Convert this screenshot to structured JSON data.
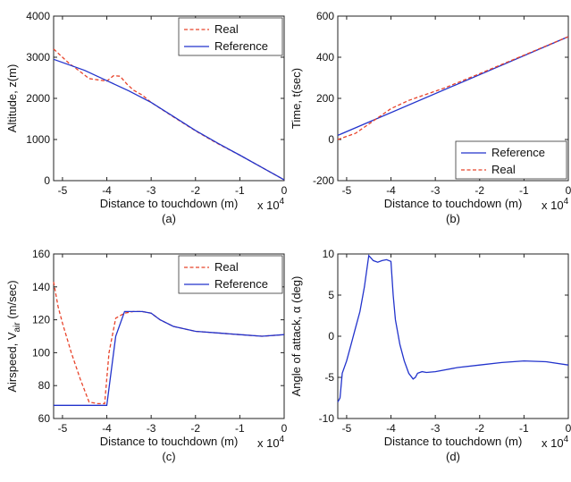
{
  "chart_data": [
    {
      "id": "a",
      "type": "line",
      "caption": "(a)",
      "xlabel": "Distance to touchdown (m)",
      "xexponent": "x 10",
      "xexponent_power": "4",
      "ylabel": "Altitude, z(m)",
      "xlim": [
        -5.2,
        0
      ],
      "ylim": [
        0,
        4000
      ],
      "xticks": [
        -5,
        -4,
        -3,
        -2,
        -1,
        0
      ],
      "xtick_labels": [
        "-5",
        "-4",
        "-3",
        "-2",
        "-1",
        "0"
      ],
      "yticks": [
        0,
        1000,
        2000,
        3000,
        4000
      ],
      "ytick_labels": [
        "0",
        "1000",
        "2000",
        "3000",
        "4000"
      ],
      "legend_position": "top-right",
      "series": [
        {
          "name": "Real",
          "color": "#e8432a",
          "dash": "dashed",
          "x": [
            -5.2,
            -5.05,
            -4.85,
            -4.6,
            -4.4,
            -4.2,
            -4.0,
            -3.85,
            -3.7,
            -3.55,
            -3.4,
            -3.2,
            -3.0,
            -2.5,
            -2.0,
            -1.5,
            -1.0,
            -0.5,
            0
          ],
          "y": [
            3200,
            3050,
            2850,
            2650,
            2480,
            2450,
            2420,
            2550,
            2540,
            2350,
            2200,
            2080,
            1900,
            1550,
            1210,
            900,
            620,
            320,
            20
          ]
        },
        {
          "name": "Reference",
          "color": "#2233cc",
          "dash": "solid",
          "x": [
            -5.2,
            -4.5,
            -4.0,
            -3.5,
            -3.0,
            -2.5,
            -2.0,
            -1.5,
            -1.0,
            -0.5,
            0
          ],
          "y": [
            2950,
            2680,
            2430,
            2180,
            1900,
            1560,
            1220,
            910,
            620,
            320,
            20
          ]
        }
      ]
    },
    {
      "id": "b",
      "type": "line",
      "caption": "(b)",
      "xlabel": "Distance to touchdown (m)",
      "xexponent": "x 10",
      "xexponent_power": "4",
      "ylabel": "Time, t(sec)",
      "xlim": [
        -5.2,
        0
      ],
      "ylim": [
        -200,
        600
      ],
      "xticks": [
        -5,
        -4,
        -3,
        -2,
        -1,
        0
      ],
      "xtick_labels": [
        "-5",
        "-4",
        "-3",
        "-2",
        "-1",
        "0"
      ],
      "yticks": [
        -200,
        0,
        200,
        400,
        600
      ],
      "ytick_labels": [
        "-200",
        "0",
        "200",
        "400",
        "600"
      ],
      "legend_position": "bottom-right",
      "series": [
        {
          "name": "Reference",
          "color": "#2233cc",
          "dash": "solid",
          "x": [
            -5.2,
            0
          ],
          "y": [
            20,
            500
          ]
        },
        {
          "name": "Real",
          "color": "#e8432a",
          "dash": "dashed",
          "x": [
            -5.2,
            -4.8,
            -4.4,
            -4.0,
            -3.6,
            -3.2,
            -2.8,
            -2.4,
            -2.0,
            -1.5,
            -1.0,
            -0.5,
            0
          ],
          "y": [
            0,
            30,
            90,
            150,
            190,
            220,
            250,
            285,
            320,
            365,
            410,
            455,
            500
          ]
        }
      ]
    },
    {
      "id": "c",
      "type": "line",
      "caption": "(c)",
      "xlabel": "Distance to touchdown (m)",
      "xexponent": "x 10",
      "xexponent_power": "4",
      "ylabel": "Airspeed, V",
      "ylabel_sub": "air",
      "ylabel_tail": " (m/sec)",
      "xlim": [
        -5.2,
        0
      ],
      "ylim": [
        60,
        160
      ],
      "xticks": [
        -5,
        -4,
        -3,
        -2,
        -1,
        0
      ],
      "xtick_labels": [
        "-5",
        "-4",
        "-3",
        "-2",
        "-1",
        "0"
      ],
      "yticks": [
        60,
        80,
        100,
        120,
        140,
        160
      ],
      "ytick_labels": [
        "60",
        "80",
        "100",
        "120",
        "140",
        "160"
      ],
      "legend_position": "top-right",
      "series": [
        {
          "name": "Real",
          "color": "#e8432a",
          "dash": "dashed",
          "x": [
            -5.2,
            -5.1,
            -5.0,
            -4.8,
            -4.6,
            -4.4,
            -4.2,
            -4.05,
            -3.95,
            -3.8,
            -3.6,
            -3.4,
            -3.2,
            -3.0,
            -2.8,
            -2.5,
            -2.0,
            -1.5,
            -1.0,
            -0.5,
            0
          ],
          "y": [
            143,
            128,
            118,
            100,
            84,
            70,
            69,
            69,
            100,
            121,
            124,
            125,
            125,
            124,
            120,
            116,
            113,
            112,
            111,
            110,
            111
          ]
        },
        {
          "name": "Reference",
          "color": "#2233cc",
          "dash": "solid",
          "x": [
            -5.2,
            -4.05,
            -4.0,
            -3.8,
            -3.6,
            -3.4,
            -3.2,
            -3.0,
            -2.8,
            -2.5,
            -2.0,
            -1.5,
            -1.0,
            -0.5,
            0
          ],
          "y": [
            68,
            68,
            68,
            110,
            125,
            125,
            125,
            124,
            120,
            116,
            113,
            112,
            111,
            110,
            111
          ]
        }
      ]
    },
    {
      "id": "d",
      "type": "line",
      "caption": "(d)",
      "xlabel": "Distance to touchdown (m)",
      "xexponent": "x 10",
      "xexponent_power": "4",
      "ylabel": "Angle of attack, α (deg)",
      "xlim": [
        -5.2,
        0
      ],
      "ylim": [
        -10,
        10
      ],
      "xticks": [
        -5,
        -4,
        -3,
        -2,
        -1,
        0
      ],
      "xtick_labels": [
        "-5",
        "-4",
        "-3",
        "-2",
        "-1",
        "0"
      ],
      "yticks": [
        -10,
        -5,
        0,
        5,
        10
      ],
      "ytick_labels": [
        "-10",
        "-5",
        "0",
        "5",
        "10"
      ],
      "series": [
        {
          "color": "#2233cc",
          "dash": "solid",
          "x": [
            -5.2,
            -5.15,
            -5.1,
            -5.0,
            -4.9,
            -4.8,
            -4.7,
            -4.6,
            -4.5,
            -4.45,
            -4.4,
            -4.3,
            -4.2,
            -4.1,
            -4.0,
            -3.95,
            -3.9,
            -3.8,
            -3.7,
            -3.6,
            -3.5,
            -3.45,
            -3.4,
            -3.3,
            -3.2,
            -3.0,
            -2.5,
            -2.0,
            -1.5,
            -1.0,
            -0.5,
            0
          ],
          "y": [
            -8,
            -7.5,
            -4.5,
            -3,
            -1,
            1,
            3,
            6,
            9.8,
            9.5,
            9.2,
            9.0,
            9.2,
            9.3,
            9.1,
            5,
            2,
            -1,
            -3,
            -4.5,
            -5.2,
            -5.0,
            -4.5,
            -4.3,
            -4.4,
            -4.3,
            -3.8,
            -3.5,
            -3.2,
            -3.0,
            -3.1,
            -3.5
          ]
        }
      ]
    }
  ]
}
